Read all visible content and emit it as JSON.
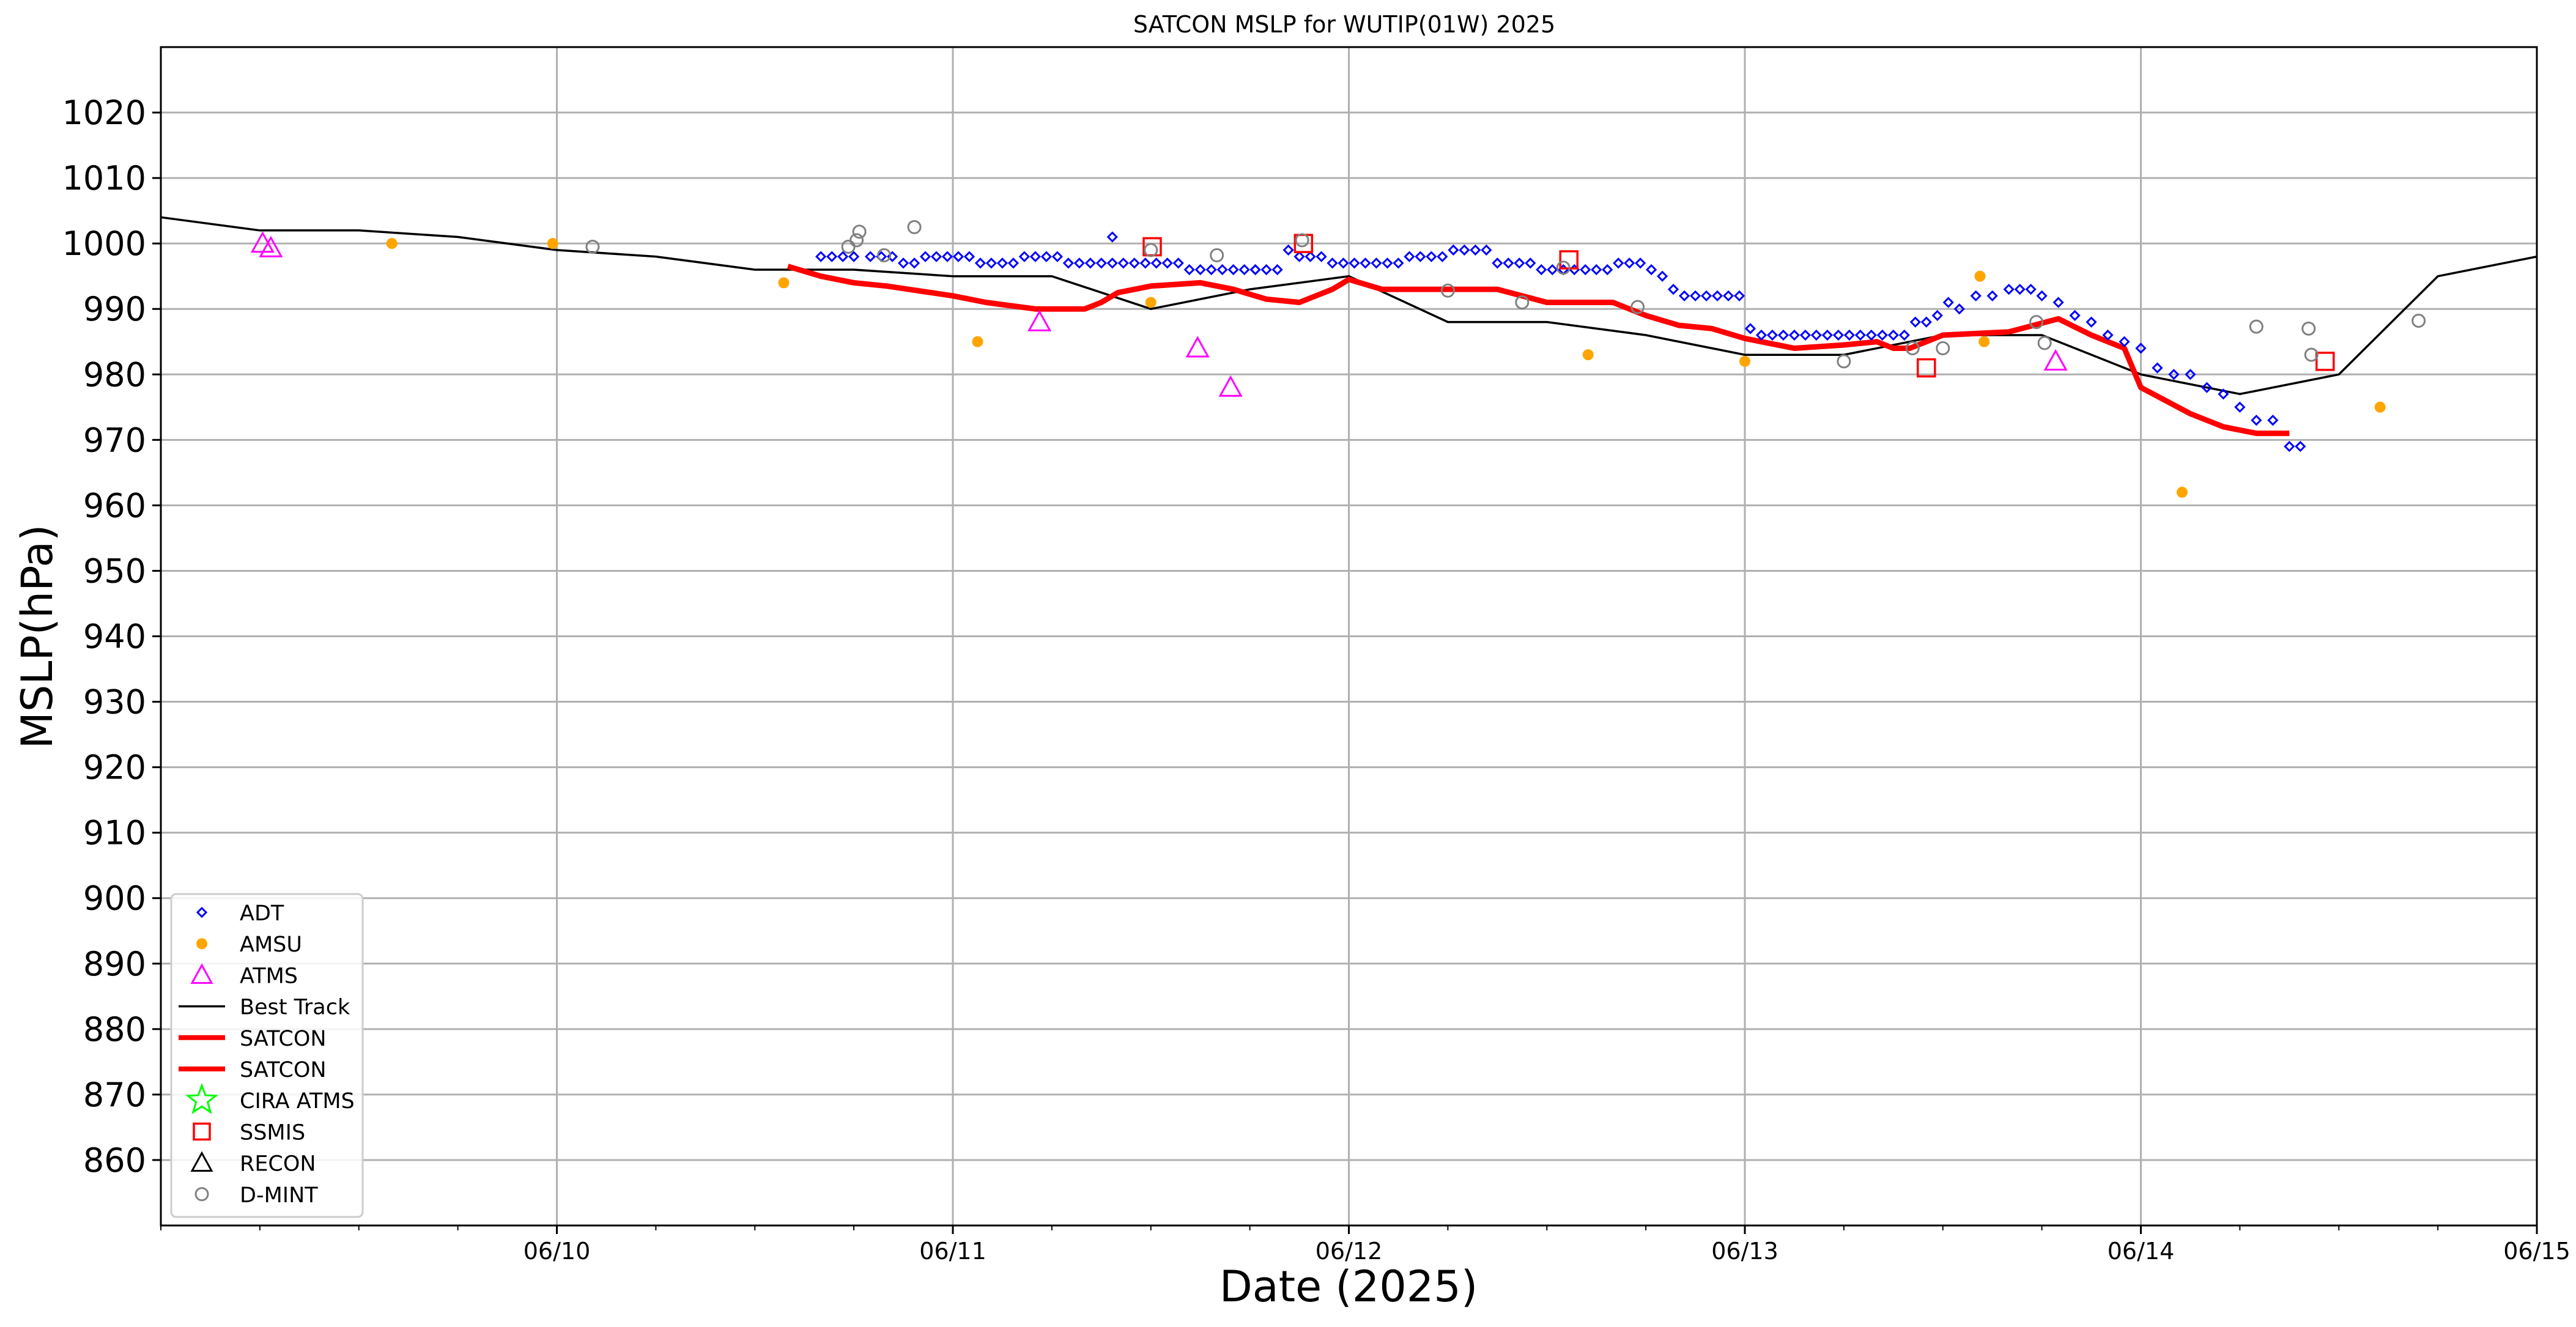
{
  "chart_data": {
    "type": "scatter",
    "title": "SATCON MSLP for WUTIP(01W) 2025",
    "xlabel": "Date (2025)",
    "ylabel": "MSLP(hPa)",
    "xlim": [
      "2025-06-09T00:00",
      "2025-06-15T00:00"
    ],
    "ylim": [
      850,
      1030
    ],
    "yticks": [
      860,
      870,
      880,
      890,
      900,
      910,
      920,
      930,
      940,
      950,
      960,
      970,
      980,
      990,
      1000,
      1010,
      1020
    ],
    "xticks": [
      {
        "t": "2025-06-10T00:00",
        "label": "06/10"
      },
      {
        "t": "2025-06-11T00:00",
        "label": "06/11"
      },
      {
        "t": "2025-06-12T00:00",
        "label": "06/12"
      },
      {
        "t": "2025-06-13T00:00",
        "label": "06/13"
      },
      {
        "t": "2025-06-14T00:00",
        "label": "06/14"
      },
      {
        "t": "2025-06-15T00:00",
        "label": "06/15"
      }
    ],
    "grid": true,
    "legend_position": "lower-left",
    "colors": {
      "adt": "#0000ff",
      "amsu": "#ffa500",
      "atms": "#ff00ff",
      "best_track": "#000000",
      "satcon": "#ff0000",
      "cira_atms": "#00ff00",
      "ssmis": "#ff0000",
      "recon": "#000000",
      "dmint": "#808080"
    },
    "legend": [
      {
        "label": "ADT",
        "marker": "diamond",
        "color": "#0000ff"
      },
      {
        "label": "AMSU",
        "marker": "dot",
        "color": "#ffa500"
      },
      {
        "label": "ATMS",
        "marker": "triangle",
        "color": "#ff00ff"
      },
      {
        "label": "Best Track",
        "marker": "line-thin",
        "color": "#000000"
      },
      {
        "label": "SATCON",
        "marker": "line-thick",
        "color": "#ff0000"
      },
      {
        "label": "SATCON",
        "marker": "line-thick",
        "color": "#ff0000"
      },
      {
        "label": "CIRA ATMS",
        "marker": "star",
        "color": "#00ff00"
      },
      {
        "label": "SSMIS",
        "marker": "square",
        "color": "#ff0000"
      },
      {
        "label": "RECON",
        "marker": "triangle",
        "color": "#000000"
      },
      {
        "label": "D-MINT",
        "marker": "circle",
        "color": "#808080"
      }
    ],
    "series": {
      "best_track": [
        [
          "2025-06-09T00:00",
          1004
        ],
        [
          "2025-06-09T06:00",
          1002
        ],
        [
          "2025-06-09T12:00",
          1002
        ],
        [
          "2025-06-09T18:00",
          1001
        ],
        [
          "2025-06-10T00:00",
          999
        ],
        [
          "2025-06-10T06:00",
          998
        ],
        [
          "2025-06-10T12:00",
          996
        ],
        [
          "2025-06-10T18:00",
          996
        ],
        [
          "2025-06-11T00:00",
          995
        ],
        [
          "2025-06-11T06:00",
          995
        ],
        [
          "2025-06-11T12:00",
          990
        ],
        [
          "2025-06-11T18:00",
          993
        ],
        [
          "2025-06-12T00:00",
          995
        ],
        [
          "2025-06-12T06:00",
          988
        ],
        [
          "2025-06-12T12:00",
          988
        ],
        [
          "2025-06-12T18:00",
          986
        ],
        [
          "2025-06-13T00:00",
          983
        ],
        [
          "2025-06-13T06:00",
          983
        ],
        [
          "2025-06-13T12:00",
          986
        ],
        [
          "2025-06-13T18:00",
          986
        ],
        [
          "2025-06-14T00:00",
          980
        ],
        [
          "2025-06-14T06:00",
          977
        ],
        [
          "2025-06-14T12:00",
          980
        ],
        [
          "2025-06-14T18:00",
          995
        ],
        [
          "2025-06-15T00:00",
          998
        ]
      ],
      "satcon": [
        [
          "2025-06-10T14:00",
          996.5
        ],
        [
          "2025-06-10T16:00",
          995
        ],
        [
          "2025-06-10T18:00",
          994
        ],
        [
          "2025-06-10T20:00",
          993.5
        ],
        [
          "2025-06-11T00:00",
          992
        ],
        [
          "2025-06-11T02:00",
          991
        ],
        [
          "2025-06-11T05:00",
          990
        ],
        [
          "2025-06-11T08:00",
          990
        ],
        [
          "2025-06-11T09:00",
          991
        ],
        [
          "2025-06-11T10:00",
          992.5
        ],
        [
          "2025-06-11T12:00",
          993.5
        ],
        [
          "2025-06-11T15:00",
          994
        ],
        [
          "2025-06-11T17:00",
          993
        ],
        [
          "2025-06-11T19:00",
          991.5
        ],
        [
          "2025-06-11T21:00",
          991
        ],
        [
          "2025-06-11T23:00",
          993
        ],
        [
          "2025-06-12T00:00",
          994.5
        ],
        [
          "2025-06-12T02:00",
          993
        ],
        [
          "2025-06-12T05:00",
          993
        ],
        [
          "2025-06-12T09:00",
          993
        ],
        [
          "2025-06-12T12:00",
          991
        ],
        [
          "2025-06-12T16:00",
          991
        ],
        [
          "2025-06-12T18:00",
          989
        ],
        [
          "2025-06-12T20:00",
          987.5
        ],
        [
          "2025-06-12T22:00",
          987
        ],
        [
          "2025-06-13T00:00",
          985.5
        ],
        [
          "2025-06-13T03:00",
          984
        ],
        [
          "2025-06-13T06:00",
          984.5
        ],
        [
          "2025-06-13T08:00",
          985
        ],
        [
          "2025-06-13T09:00",
          984
        ],
        [
          "2025-06-13T10:00",
          984
        ],
        [
          "2025-06-13T12:00",
          986
        ],
        [
          "2025-06-13T16:00",
          986.5
        ],
        [
          "2025-06-13T19:00",
          988.5
        ],
        [
          "2025-06-13T21:00",
          986
        ],
        [
          "2025-06-13T23:00",
          984
        ],
        [
          "2025-06-14T00:00",
          978
        ],
        [
          "2025-06-14T03:00",
          974
        ],
        [
          "2025-06-14T05:00",
          972
        ],
        [
          "2025-06-14T07:00",
          971
        ],
        [
          "2025-06-14T09:00",
          971
        ]
      ],
      "adt": [
        [
          "2025-06-10T16:00",
          998
        ],
        [
          "2025-06-10T16:40",
          998
        ],
        [
          "2025-06-10T17:20",
          998
        ],
        [
          "2025-06-10T18:00",
          998
        ],
        [
          "2025-06-10T19:00",
          998
        ],
        [
          "2025-06-10T19:40",
          998
        ],
        [
          "2025-06-10T20:20",
          998
        ],
        [
          "2025-06-10T21:00",
          997
        ],
        [
          "2025-06-10T21:40",
          997
        ],
        [
          "2025-06-10T22:20",
          998
        ],
        [
          "2025-06-10T23:00",
          998
        ],
        [
          "2025-06-10T23:40",
          998
        ],
        [
          "2025-06-11T00:20",
          998
        ],
        [
          "2025-06-11T01:00",
          998
        ],
        [
          "2025-06-11T01:40",
          997
        ],
        [
          "2025-06-11T02:20",
          997
        ],
        [
          "2025-06-11T03:00",
          997
        ],
        [
          "2025-06-11T03:40",
          997
        ],
        [
          "2025-06-11T04:20",
          998
        ],
        [
          "2025-06-11T05:00",
          998
        ],
        [
          "2025-06-11T05:40",
          998
        ],
        [
          "2025-06-11T06:20",
          998
        ],
        [
          "2025-06-11T07:00",
          997
        ],
        [
          "2025-06-11T07:40",
          997
        ],
        [
          "2025-06-11T08:20",
          997
        ],
        [
          "2025-06-11T09:00",
          997
        ],
        [
          "2025-06-11T09:40",
          997
        ],
        [
          "2025-06-11T10:20",
          997
        ],
        [
          "2025-06-11T11:00",
          997
        ],
        [
          "2025-06-11T11:40",
          997
        ],
        [
          "2025-06-11T12:20",
          997
        ],
        [
          "2025-06-11T13:00",
          997
        ],
        [
          "2025-06-11T13:40",
          997
        ],
        [
          "2025-06-11T14:20",
          996
        ],
        [
          "2025-06-11T15:00",
          996
        ],
        [
          "2025-06-11T15:40",
          996
        ],
        [
          "2025-06-11T16:20",
          996
        ],
        [
          "2025-06-11T17:00",
          996
        ],
        [
          "2025-06-11T17:40",
          996
        ],
        [
          "2025-06-11T18:20",
          996
        ],
        [
          "2025-06-11T19:00",
          996
        ],
        [
          "2025-06-11T19:40",
          996
        ],
        [
          "2025-06-11T20:20",
          999
        ],
        [
          "2025-06-11T21:00",
          998
        ],
        [
          "2025-06-11T21:40",
          998
        ],
        [
          "2025-06-11T22:20",
          998
        ],
        [
          "2025-06-11T23:00",
          997
        ],
        [
          "2025-06-11T23:40",
          997
        ],
        [
          "2025-06-12T00:20",
          997
        ],
        [
          "2025-06-12T01:00",
          997
        ],
        [
          "2025-06-12T01:40",
          997
        ],
        [
          "2025-06-12T02:20",
          997
        ],
        [
          "2025-06-12T03:00",
          997
        ],
        [
          "2025-06-12T03:40",
          998
        ],
        [
          "2025-06-12T04:20",
          998
        ],
        [
          "2025-06-12T05:00",
          998
        ],
        [
          "2025-06-12T05:40",
          998
        ],
        [
          "2025-06-12T06:20",
          999
        ],
        [
          "2025-06-12T07:00",
          999
        ],
        [
          "2025-06-12T07:40",
          999
        ],
        [
          "2025-06-12T08:20",
          999
        ],
        [
          "2025-06-12T09:00",
          997
        ],
        [
          "2025-06-12T09:40",
          997
        ],
        [
          "2025-06-12T10:20",
          997
        ],
        [
          "2025-06-12T11:00",
          997
        ],
        [
          "2025-06-12T11:40",
          996
        ],
        [
          "2025-06-12T12:20",
          996
        ],
        [
          "2025-06-12T13:00",
          996
        ],
        [
          "2025-06-12T13:40",
          996
        ],
        [
          "2025-06-12T14:20",
          996
        ],
        [
          "2025-06-12T15:00",
          996
        ],
        [
          "2025-06-12T15:40",
          996
        ],
        [
          "2025-06-12T16:20",
          997
        ],
        [
          "2025-06-12T17:00",
          997
        ],
        [
          "2025-06-12T17:40",
          997
        ],
        [
          "2025-06-12T18:20",
          996
        ],
        [
          "2025-06-12T19:00",
          995
        ],
        [
          "2025-06-12T19:40",
          993
        ],
        [
          "2025-06-12T20:20",
          992
        ],
        [
          "2025-06-12T21:00",
          992
        ],
        [
          "2025-06-12T21:40",
          992
        ],
        [
          "2025-06-12T22:20",
          992
        ],
        [
          "2025-06-12T23:00",
          992
        ],
        [
          "2025-06-12T23:40",
          992
        ],
        [
          "2025-06-13T00:20",
          987
        ],
        [
          "2025-06-13T01:00",
          986
        ],
        [
          "2025-06-13T01:40",
          986
        ],
        [
          "2025-06-13T02:20",
          986
        ],
        [
          "2025-06-13T03:00",
          986
        ],
        [
          "2025-06-13T03:40",
          986
        ],
        [
          "2025-06-13T04:20",
          986
        ],
        [
          "2025-06-13T05:00",
          986
        ],
        [
          "2025-06-13T05:40",
          986
        ],
        [
          "2025-06-13T06:20",
          986
        ],
        [
          "2025-06-13T07:00",
          986
        ],
        [
          "2025-06-13T07:40",
          986
        ],
        [
          "2025-06-13T08:20",
          986
        ],
        [
          "2025-06-13T09:00",
          986
        ],
        [
          "2025-06-13T09:40",
          986
        ],
        [
          "2025-06-13T10:20",
          988
        ],
        [
          "2025-06-13T11:00",
          988
        ],
        [
          "2025-06-13T11:40",
          989
        ],
        [
          "2025-06-13T12:20",
          991
        ],
        [
          "2025-06-13T13:00",
          990
        ],
        [
          "2025-06-13T14:00",
          992
        ],
        [
          "2025-06-13T15:00",
          992
        ],
        [
          "2025-06-13T16:00",
          993
        ],
        [
          "2025-06-13T16:40",
          993
        ],
        [
          "2025-06-13T17:20",
          993
        ],
        [
          "2025-06-13T18:00",
          992
        ],
        [
          "2025-06-13T19:00",
          991
        ],
        [
          "2025-06-13T20:00",
          989
        ],
        [
          "2025-06-13T21:00",
          988
        ],
        [
          "2025-06-13T22:00",
          986
        ],
        [
          "2025-06-13T23:00",
          985
        ],
        [
          "2025-06-14T00:00",
          984
        ],
        [
          "2025-06-14T01:00",
          981
        ],
        [
          "2025-06-14T02:00",
          980
        ],
        [
          "2025-06-14T03:00",
          980
        ],
        [
          "2025-06-14T04:00",
          978
        ],
        [
          "2025-06-14T05:00",
          977
        ],
        [
          "2025-06-14T06:00",
          975
        ],
        [
          "2025-06-14T07:00",
          973
        ],
        [
          "2025-06-14T08:00",
          973
        ],
        [
          "2025-06-14T09:00",
          969
        ],
        [
          "2025-06-14T09:40",
          969
        ],
        [
          "2025-06-11T18:20",
          996
        ],
        [
          "2025-06-11T09:40",
          1001
        ]
      ],
      "amsu": [
        [
          "2025-06-09T14:00",
          1000
        ],
        [
          "2025-06-09T23:45",
          1000
        ],
        [
          "2025-06-10T13:45",
          994
        ],
        [
          "2025-06-11T01:30",
          985
        ],
        [
          "2025-06-11T12:00",
          991
        ],
        [
          "2025-06-12T14:30",
          983
        ],
        [
          "2025-06-13T00:00",
          982
        ],
        [
          "2025-06-13T14:15",
          995
        ],
        [
          "2025-06-13T14:30",
          985
        ],
        [
          "2025-06-14T02:30",
          962
        ],
        [
          "2025-06-14T14:30",
          975
        ]
      ],
      "atms": [
        [
          "2025-06-09T06:10",
          1000
        ],
        [
          "2025-06-09T06:40",
          999.3
        ],
        [
          "2025-06-11T05:15",
          988
        ],
        [
          "2025-06-11T14:50",
          984
        ],
        [
          "2025-06-11T16:50",
          978
        ],
        [
          "2025-06-13T18:50",
          982
        ]
      ],
      "ssmis": [
        [
          "2025-06-11T12:05",
          999.5
        ],
        [
          "2025-06-12T13:20",
          997.5
        ],
        [
          "2025-06-11T21:15",
          1000
        ],
        [
          "2025-06-13T11:00",
          981
        ],
        [
          "2025-06-14T11:10",
          982
        ]
      ],
      "dmint": [
        [
          "2025-06-10T02:10",
          999.5
        ],
        [
          "2025-06-10T17:40",
          999.5
        ],
        [
          "2025-06-10T18:10",
          1000.5
        ],
        [
          "2025-06-10T18:20",
          1001.8
        ],
        [
          "2025-06-10T19:50",
          998.2
        ],
        [
          "2025-06-10T21:40",
          1002.5
        ],
        [
          "2025-06-11T12:00",
          999
        ],
        [
          "2025-06-11T16:00",
          998.2
        ],
        [
          "2025-06-11T21:10",
          1000.5
        ],
        [
          "2025-06-12T06:00",
          992.8
        ],
        [
          "2025-06-12T10:30",
          991
        ],
        [
          "2025-06-12T13:00",
          996.3
        ],
        [
          "2025-06-12T17:30",
          990.3
        ],
        [
          "2025-06-13T06:00",
          982
        ],
        [
          "2025-06-13T10:10",
          984
        ],
        [
          "2025-06-13T12:00",
          984
        ],
        [
          "2025-06-13T17:40",
          988
        ],
        [
          "2025-06-13T18:10",
          984.8
        ],
        [
          "2025-06-14T07:00",
          987.3
        ],
        [
          "2025-06-14T10:10",
          987
        ],
        [
          "2025-06-14T10:20",
          983
        ],
        [
          "2025-06-14T16:50",
          988.2
        ]
      ]
    }
  }
}
